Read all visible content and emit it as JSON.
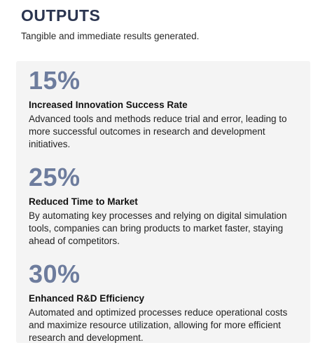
{
  "header": {
    "title": "OUTPUTS",
    "subtitle": "Tangible and immediate results generated."
  },
  "stats": [
    {
      "value": "15%",
      "heading": "Increased Innovation Success Rate",
      "description": "Advanced tools and methods reduce trial and error, leading to more successful outcomes in research and development initiatives."
    },
    {
      "value": "25%",
      "heading": "Reduced Time to Market",
      "description": "By automating key processes and relying on digital simulation tools, companies can bring products to market faster, staying ahead of competitors."
    },
    {
      "value": "30%",
      "heading": "Enhanced R&D Efficiency",
      "description": "Automated and optimized processes reduce operational costs and maximize resource utilization, allowing for more efficient research and development."
    }
  ],
  "colors": {
    "title": "#2b3550",
    "stat_value": "#6d7c9d",
    "card_background": "#f4f4f4"
  }
}
